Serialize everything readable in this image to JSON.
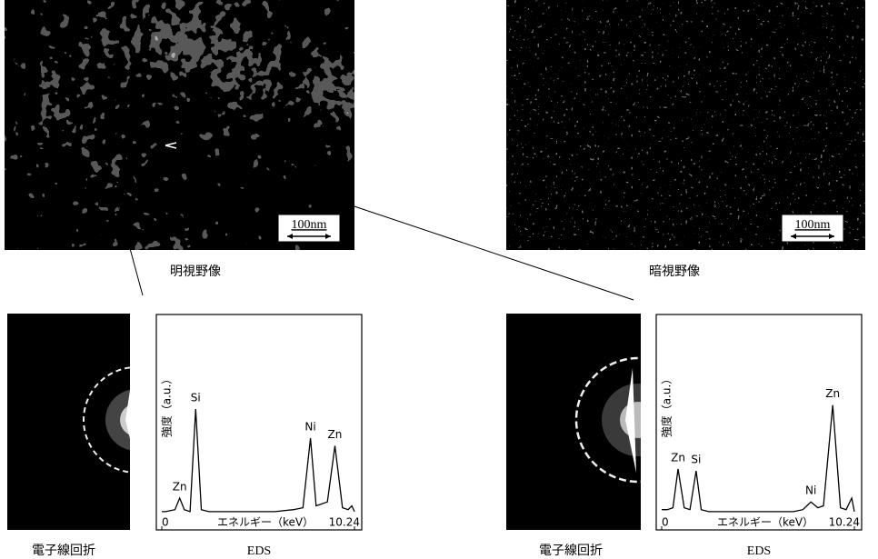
{
  "figure": {
    "bright_field": {
      "caption": "明視野像",
      "scale_bar": "100nm"
    },
    "dark_field": {
      "caption": "暗視野像",
      "scale_bar": "100nm"
    },
    "diffraction_captions": [
      "電子線回折",
      "電子線回折"
    ]
  },
  "chart_data": [
    {
      "type": "line",
      "caption": "EDS",
      "x_label": "エネルギー（keV）",
      "y_label": "強度（a.u.）",
      "color": "#000000",
      "xlim": [
        0,
        10.24
      ],
      "xticks": [
        0,
        10.24
      ],
      "ylim": [
        0,
        100
      ],
      "x": [
        0,
        0.2,
        0.7,
        0.95,
        1.2,
        1.5,
        1.8,
        2.1,
        2.5,
        3,
        4,
        5,
        6,
        7,
        7.5,
        7.9,
        8.2,
        8.5,
        8.8,
        9.2,
        9.6,
        9.9,
        10.1,
        10.24
      ],
      "values": [
        1,
        1,
        2,
        8,
        2,
        1,
        54,
        2,
        1,
        1,
        1,
        1,
        1,
        2,
        3,
        39,
        4,
        5,
        6,
        35,
        3,
        2,
        4,
        1
      ],
      "peaks": [
        {
          "label": "Zn",
          "x": 0.95
        },
        {
          "label": "Si",
          "x": 1.8
        },
        {
          "label": "Ni",
          "x": 7.9
        },
        {
          "label": "Zn",
          "x": 9.2
        }
      ]
    },
    {
      "type": "line",
      "caption": "EDS",
      "x_label": "エネルギー（keV）",
      "y_label": "強度（a.u.）",
      "color": "#000000",
      "xlim": [
        0,
        10.24
      ],
      "xticks": [
        0,
        10.24
      ],
      "ylim": [
        0,
        100
      ],
      "x": [
        0,
        0.3,
        0.6,
        0.87,
        1.2,
        1.5,
        1.83,
        2.1,
        2.5,
        3,
        4,
        5,
        6,
        7,
        7.5,
        7.93,
        8.3,
        8.6,
        9.09,
        9.5,
        9.8,
        10.1,
        10.24
      ],
      "values": [
        2,
        2,
        3,
        23,
        3,
        2,
        22,
        2,
        1,
        1,
        1,
        1,
        1,
        1,
        2,
        6,
        3,
        4,
        56,
        3,
        2,
        8,
        1
      ],
      "peaks": [
        {
          "label": "Zn",
          "x": 0.87
        },
        {
          "label": "Si",
          "x": 1.83
        },
        {
          "label": "Ni",
          "x": 7.93
        },
        {
          "label": "Zn",
          "x": 9.09
        }
      ]
    }
  ]
}
